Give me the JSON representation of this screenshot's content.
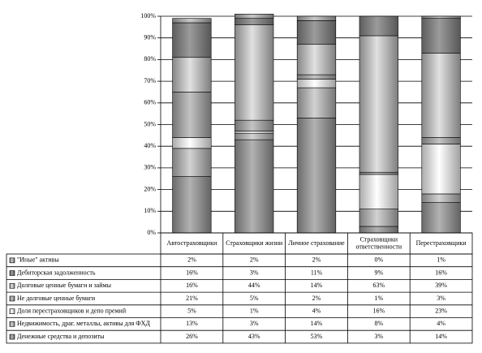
{
  "chart_data": {
    "type": "stacked_bar",
    "categories": [
      "Автостраховщики",
      "Страховщики жизни",
      "Личное страхование",
      "Страховщики ответственности",
      "Перестраховщики"
    ],
    "series": [
      {
        "name": "Денежные средства и депозиты",
        "color": "#8e8e8e",
        "values": [
          26,
          43,
          53,
          3,
          14
        ],
        "value_labels": [
          "26%",
          "43%",
          "53%",
          "3%",
          "14%"
        ]
      },
      {
        "name": "Недвижимость, драг. металлы, активы для ФХД",
        "color": "#a8a8a8",
        "values": [
          13,
          3,
          14,
          8,
          4
        ],
        "value_labels": [
          "13%",
          "3%",
          "14%",
          "8%",
          "4%"
        ]
      },
      {
        "name": "Доля перестраховщиков и депо премий",
        "color": "#e4e4e4",
        "values": [
          5,
          1,
          4,
          16,
          23
        ],
        "value_labels": [
          "5%",
          "1%",
          "4%",
          "16%",
          "23%"
        ]
      },
      {
        "name": "Не долговые ценные бумаги",
        "color": "#9c9c9c",
        "values": [
          21,
          5,
          2,
          1,
          3
        ],
        "value_labels": [
          "21%",
          "5%",
          "2%",
          "1%",
          "3%"
        ]
      },
      {
        "name": "Долговые ценные бумаги и займы",
        "color": "#b4b4b4",
        "values": [
          16,
          44,
          14,
          63,
          39
        ],
        "value_labels": [
          "16%",
          "44%",
          "14%",
          "63%",
          "39%"
        ]
      },
      {
        "name": "Дебиторская задолженность",
        "color": "#7c7c7c",
        "values": [
          16,
          3,
          11,
          9,
          16
        ],
        "value_labels": [
          "16%",
          "3%",
          "11%",
          "9%",
          "16%"
        ]
      },
      {
        "name": "\"Иные\" активы",
        "color": "#a0a0a0",
        "values": [
          2,
          2,
          2,
          0,
          1
        ],
        "value_labels": [
          "2%",
          "2%",
          "2%",
          "0%",
          "1%"
        ]
      }
    ],
    "ylim": [
      0,
      100
    ],
    "yticks": [
      {
        "value": 0,
        "label": "0%"
      },
      {
        "value": 10,
        "label": "10%"
      },
      {
        "value": 20,
        "label": "20%"
      },
      {
        "value": 30,
        "label": "30%"
      },
      {
        "value": 40,
        "label": "40%"
      },
      {
        "value": 50,
        "label": "50%"
      },
      {
        "value": 60,
        "label": "60%"
      },
      {
        "value": 70,
        "label": "70%"
      },
      {
        "value": 80,
        "label": "80%"
      },
      {
        "value": 90,
        "label": "90%"
      },
      {
        "value": 100,
        "label": "100%"
      }
    ],
    "grid": true
  }
}
